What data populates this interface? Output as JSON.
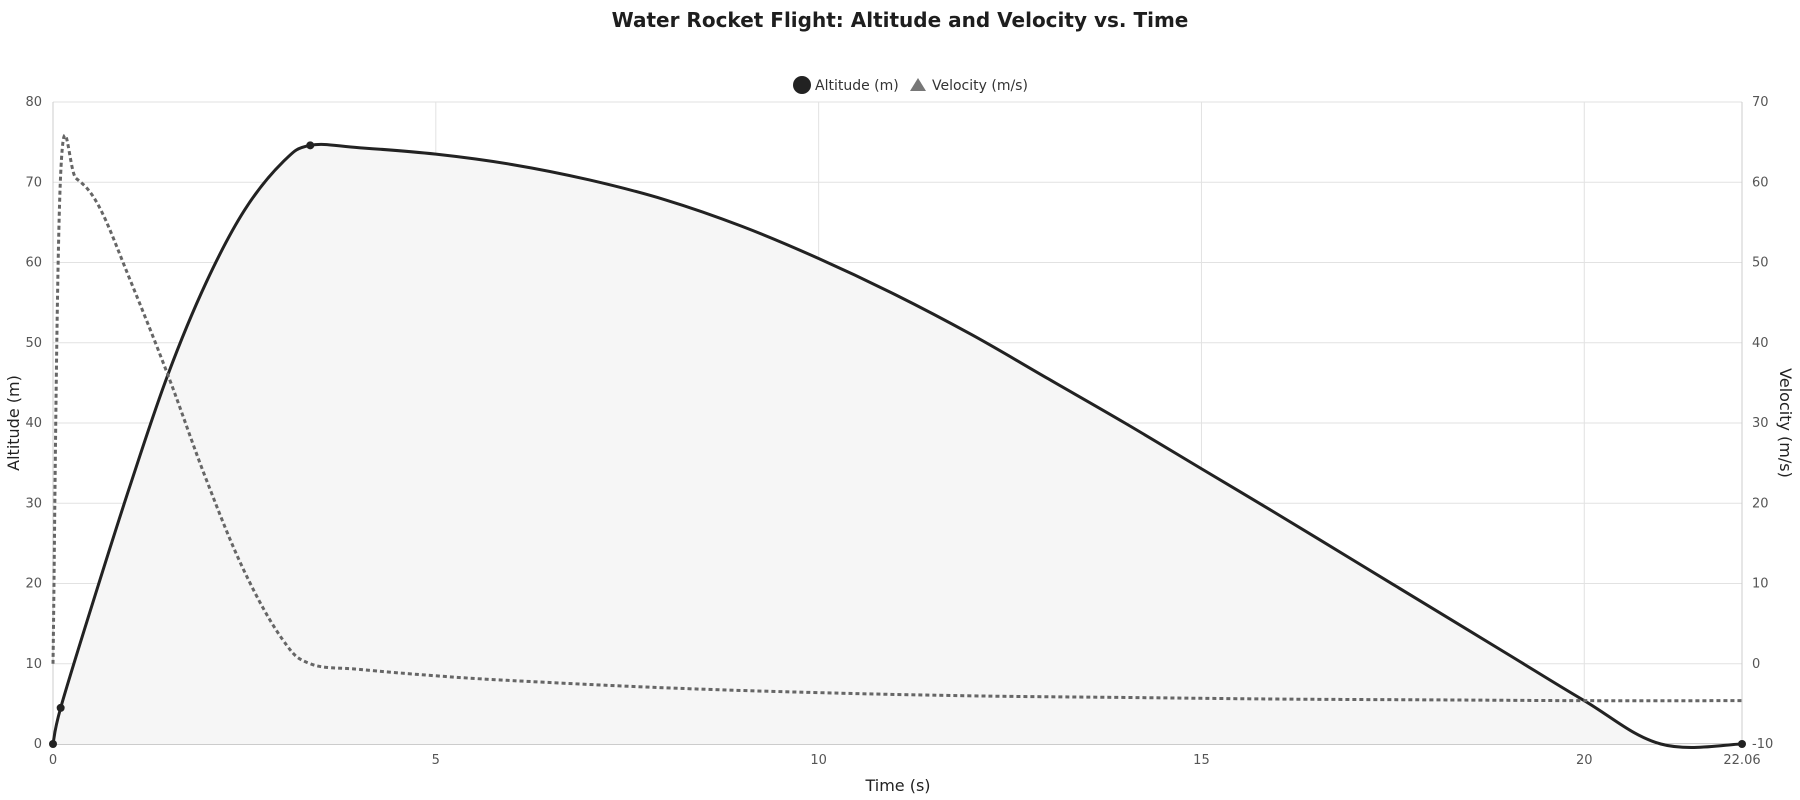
{
  "chart_data": {
    "type": "line",
    "title": "Water Rocket Flight: Altitude and Velocity vs. Time",
    "xlabel": "Time (s)",
    "ylabel": "Altitude (m)",
    "y2label": "Velocity (m/s)",
    "xlim": [
      0,
      22.06
    ],
    "ylim": [
      0,
      80
    ],
    "y2lim": [
      -10,
      70
    ],
    "x_ticks": [
      "0",
      "5",
      "10",
      "15",
      "20",
      "22.06"
    ],
    "y_ticks": [
      "0",
      "10",
      "20",
      "30",
      "40",
      "50",
      "60",
      "70",
      "80"
    ],
    "y2_ticks": [
      "-10",
      "0",
      "10",
      "20",
      "30",
      "40",
      "50",
      "60",
      "70"
    ],
    "grid": true,
    "legend_position": "top-center",
    "series": [
      {
        "name": "Altitude (m)",
        "axis": "left",
        "marker": "circle",
        "color": "#222222",
        "fill": "#f6f6f6",
        "line_style": "solid",
        "x": [
          0,
          0.1,
          0.5,
          1.0,
          1.5,
          2.0,
          2.5,
          3.0,
          3.36,
          4.0,
          5.0,
          6.0,
          7.0,
          8.0,
          9.0,
          10.0,
          11.0,
          12.0,
          13.0,
          14.0,
          15.0,
          16.0,
          17.0,
          18.0,
          19.0,
          20.0,
          21.0,
          22.06
        ],
        "y": [
          0,
          4.5,
          17,
          32,
          46,
          57.5,
          66.5,
          72.5,
          74.6,
          74.3,
          73.5,
          72.2,
          70.3,
          67.8,
          64.5,
          60.5,
          56,
          51,
          45.5,
          40,
          34.3,
          28.6,
          22.8,
          17,
          11.2,
          5.4,
          -0.4,
          0
        ],
        "markers_at": [
          0,
          1,
          8,
          27
        ]
      },
      {
        "name": "Velocity (m/s)",
        "axis": "right",
        "marker": "triangle",
        "color": "#666666",
        "line_style": "dotted",
        "x": [
          0,
          0.1,
          0.3,
          0.6,
          1.0,
          1.5,
          2.0,
          2.5,
          3.0,
          3.36,
          4.0,
          5.0,
          6.0,
          8.0,
          10.0,
          12.0,
          14.0,
          16.0,
          18.0,
          20.0,
          22.06
        ],
        "y": [
          0,
          61,
          60.5,
          57,
          48,
          36,
          23,
          11.5,
          3,
          0,
          -0.7,
          -1.5,
          -2.1,
          -3.0,
          -3.6,
          -4.0,
          -4.2,
          -4.4,
          -4.5,
          -4.6,
          -4.6
        ]
      }
    ]
  }
}
